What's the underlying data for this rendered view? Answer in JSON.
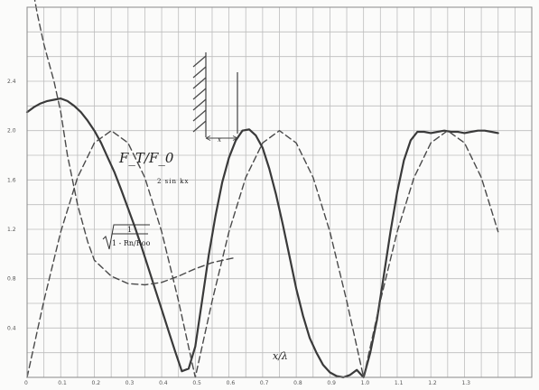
{
  "chart_data": {
    "type": "line",
    "title": "",
    "xlabel": "x/λ",
    "ylabel": "",
    "xlim": [
      0,
      1.5
    ],
    "ylim": [
      0,
      3.0
    ],
    "grid": true,
    "x_ticks": [
      "0",
      "0.1",
      "0.2",
      "0.3",
      "0.4",
      "0.5",
      "0.6",
      "0.7",
      "0.8",
      "0.9",
      "1.0",
      "1.1",
      "1.2",
      "1.3"
    ],
    "y_ticks": [
      "0.4",
      "0.8",
      "1.2",
      "1.6",
      "2.0",
      "2.4"
    ],
    "series": [
      {
        "name": "F_T/F_0",
        "style": "solid",
        "color": "#3a3a3a",
        "x": [
          0,
          0.02,
          0.04,
          0.06,
          0.08,
          0.1,
          0.12,
          0.14,
          0.16,
          0.18,
          0.2,
          0.22,
          0.24,
          0.26,
          0.28,
          0.3,
          0.32,
          0.34,
          0.36,
          0.38,
          0.4,
          0.42,
          0.44,
          0.46,
          0.48,
          0.5,
          0.52,
          0.54,
          0.56,
          0.58,
          0.6,
          0.62,
          0.64,
          0.66,
          0.68,
          0.7,
          0.72,
          0.74,
          0.76,
          0.78,
          0.8,
          0.82,
          0.84,
          0.86,
          0.88,
          0.9,
          0.92,
          0.94,
          0.96,
          0.98,
          1.0,
          1.02,
          1.04,
          1.06,
          1.08,
          1.1,
          1.12,
          1.14,
          1.16,
          1.18,
          1.2,
          1.22,
          1.24,
          1.26,
          1.28,
          1.3,
          1.32,
          1.34,
          1.36,
          1.38,
          1.4
        ],
        "y": [
          2.15,
          2.19,
          2.22,
          2.24,
          2.25,
          2.26,
          2.24,
          2.2,
          2.15,
          2.08,
          2.0,
          1.9,
          1.78,
          1.66,
          1.52,
          1.37,
          1.22,
          1.06,
          0.89,
          0.72,
          0.55,
          0.38,
          0.21,
          0.05,
          0.07,
          0.25,
          0.62,
          0.99,
          1.31,
          1.58,
          1.78,
          1.92,
          2.0,
          2.01,
          1.96,
          1.86,
          1.69,
          1.48,
          1.24,
          0.98,
          0.72,
          0.5,
          0.32,
          0.2,
          0.1,
          0.04,
          0.01,
          0.0,
          0.02,
          0.06,
          0.0,
          0.2,
          0.47,
          0.82,
          1.18,
          1.5,
          1.76,
          1.92,
          1.99,
          1.99,
          1.98,
          1.99,
          2.0,
          1.99,
          1.99,
          1.98,
          1.99,
          2.0,
          2.0,
          1.99,
          1.98
        ]
      },
      {
        "name": "2 sin kx",
        "style": "dashed",
        "color": "#4a4a4a",
        "x": [
          0,
          0.05,
          0.1,
          0.15,
          0.2,
          0.25,
          0.3,
          0.35,
          0.4,
          0.45,
          0.5,
          0.55,
          0.6,
          0.65,
          0.7,
          0.75,
          0.8,
          0.85,
          0.9,
          0.95,
          1.0,
          1.05,
          1.1,
          1.15,
          1.2,
          1.25,
          1.3,
          1.35,
          1.4
        ],
        "y": [
          0.0,
          0.62,
          1.18,
          1.62,
          1.9,
          2.0,
          1.9,
          1.62,
          1.18,
          0.62,
          0.0,
          0.62,
          1.18,
          1.62,
          1.9,
          2.0,
          1.9,
          1.62,
          1.18,
          0.62,
          0.0,
          0.62,
          1.18,
          1.62,
          1.9,
          2.0,
          1.9,
          1.62,
          1.18
        ]
      },
      {
        "name": "1/√(1 − R_n/R_oo)",
        "style": "dashed",
        "color": "#4a4a4a",
        "x": [
          0.02,
          0.03,
          0.05,
          0.08,
          0.1,
          0.12,
          0.15,
          0.18,
          0.2,
          0.25,
          0.3,
          0.35,
          0.4,
          0.45,
          0.5,
          0.55,
          0.6,
          0.62
        ],
        "y": [
          3.1,
          2.95,
          2.7,
          2.4,
          2.15,
          1.8,
          1.4,
          1.1,
          0.95,
          0.82,
          0.76,
          0.75,
          0.77,
          0.82,
          0.88,
          0.93,
          0.96,
          0.97
        ]
      }
    ],
    "annotations": [
      "F_T/F_0",
      "2 sin kx",
      "x/λ"
    ]
  }
}
